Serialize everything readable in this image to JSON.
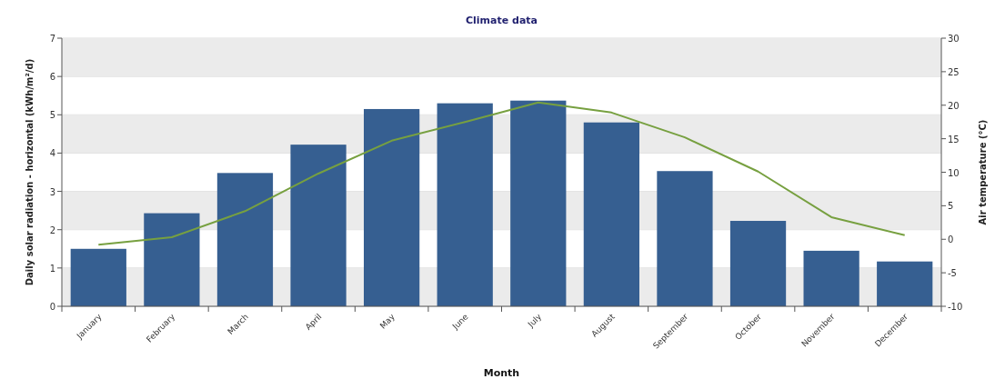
{
  "chart_data": {
    "type": "bar",
    "title": "Climate data",
    "xlabel": "Month",
    "ylabel": "Daily solar radiation - horizontal (kWh/m²/d)",
    "y2label": "Air temperature (°C)",
    "categories": [
      "January",
      "February",
      "March",
      "April",
      "May",
      "June",
      "July",
      "August",
      "September",
      "October",
      "November",
      "December"
    ],
    "series": [
      {
        "color": "#365f91",
        "values": [
          1.5,
          2.43,
          3.48,
          4.22,
          5.15,
          5.3,
          5.37,
          4.8,
          3.53,
          2.23,
          1.45,
          1.17
        ]
      },
      {
        "type": "line",
        "axis": "y2",
        "color": "#77a040",
        "values": [
          -0.8,
          0.3,
          4.2,
          9.8,
          14.7,
          17.5,
          20.4,
          18.9,
          15.2,
          10.1,
          3.3,
          0.6
        ]
      }
    ],
    "ylim": [
      0,
      7
    ],
    "yticks": [
      0,
      1,
      2,
      3,
      4,
      5,
      6,
      7
    ],
    "y2lim": [
      -10,
      30
    ],
    "y2ticks": [
      -10,
      -5,
      0,
      5,
      10,
      15,
      20,
      25,
      30
    ],
    "grid": "y",
    "marker": "none",
    "line_style": "solid"
  }
}
